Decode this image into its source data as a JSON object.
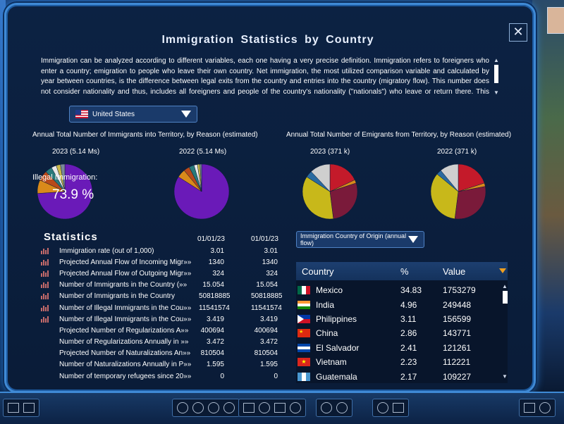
{
  "window": {
    "title": "Immigration  Statistics by Country",
    "intro": "Immigration can be analyzed according to different variables, each one having a very precise definition. Immigration refers to foreigners who enter a country; emigration to people who leave their own country. Net immigration, the most utilized comparison variable and calculated by year between countries, is the difference between legal exits from the country and entries into the country (migratory flow). This number does not consider nationality and thus, includes all foreigners and people of the country's nationality (\"nationals\") who leave or return there. This number is"
  },
  "country_select": {
    "value": "United States"
  },
  "immigrants": {
    "title": "Annual Total Number of Immigrants into Territory, by Reason (estimated)",
    "pie1_label": "2023 (5.14 Ms)",
    "pie2_label": "2022 (5.14 Ms)",
    "illegal_label": "Illegal Immigration:",
    "illegal_value": "73.9 %"
  },
  "emigrants": {
    "title": "Annual Total Number of Emigrants from Territory, by Reason (estimated)",
    "pie1_label": "2023 (371 k)",
    "pie2_label": "2022 (371 k)"
  },
  "chart_data": [
    {
      "type": "pie",
      "title": "2023 (5.14 Ms)",
      "values": [
        73.9,
        8,
        6,
        4,
        3,
        2.5,
        2.6
      ],
      "colors": [
        "#6a1ab8",
        "#d98a1a",
        "#b84a1a",
        "#2a7a7a",
        "#e8e8e8",
        "#c8b84a",
        "#7a8a9a"
      ]
    },
    {
      "type": "pie",
      "title": "2022 (5.14 Ms)",
      "values": [
        84,
        5,
        3.5,
        3,
        2,
        1.5,
        1
      ],
      "colors": [
        "#6a1ab8",
        "#d98a1a",
        "#b84a1a",
        "#2a7a7a",
        "#e8e8e8",
        "#c8b84a",
        "#7a8a9a"
      ]
    },
    {
      "type": "pie",
      "title": "2023 (371 k)",
      "values": [
        18,
        2,
        28,
        36,
        4,
        12
      ],
      "colors": [
        "#c41a2a",
        "#d98a1a",
        "#7a1a3a",
        "#c8b81a",
        "#2a6aa0",
        "#cfcfcf"
      ]
    },
    {
      "type": "pie",
      "title": "2022 (371 k)",
      "values": [
        20,
        2,
        30,
        34,
        3,
        11
      ],
      "colors": [
        "#c41a2a",
        "#d98a1a",
        "#7a1a3a",
        "#c8b81a",
        "#2a6aa0",
        "#cfcfcf"
      ]
    }
  ],
  "statistics": {
    "title": "Statistics",
    "date1": "01/01/23",
    "date2": "01/01/23",
    "rows": [
      {
        "label": "Immigration rate (out of 1,000)",
        "v1": "3.01",
        "v2": "3.01",
        "icon": true
      },
      {
        "label": "Projected Annual Flow of Incoming Migr»»",
        "v1": "1340",
        "v2": "1340",
        "icon": true
      },
      {
        "label": "Projected Annual Flow of Outgoing Migr»»",
        "v1": "324",
        "v2": "324",
        "icon": true
      },
      {
        "label": "Number of Immigrants in the Country (»»",
        "v1": "15.054",
        "v2": "15.054",
        "icon": true
      },
      {
        "label": "Number of Immigrants in the Country",
        "v1": "50818885",
        "v2": "50818885",
        "icon": true
      },
      {
        "label": "Number of Illegal Immigrants in the Cou»»",
        "v1": "11541574",
        "v2": "11541574",
        "icon": true
      },
      {
        "label": "Number of Illegal Immigrants in the Cou»»",
        "v1": "3.419",
        "v2": "3.419",
        "icon": true
      },
      {
        "label": "Projected Number of Regularizations A»»",
        "v1": "400694",
        "v2": "400694",
        "icon": false
      },
      {
        "label": "Number of Regularizations Annually in »»",
        "v1": "3.472",
        "v2": "3.472",
        "icon": false
      },
      {
        "label": "Projected Number of Naturalizations An»»",
        "v1": "810504",
        "v2": "810504",
        "icon": false
      },
      {
        "label": "Number of Naturalizations Annually in P»»",
        "v1": "1.595",
        "v2": "1.595",
        "icon": false
      },
      {
        "label": "Number of temporary refugees since 20»»",
        "v1": "0",
        "v2": "0",
        "icon": false
      }
    ]
  },
  "origin_select": {
    "value": "Immigration Country of Origin (annual flow)"
  },
  "origin_table": {
    "headers": [
      "Country",
      "%",
      "Value"
    ],
    "rows": [
      {
        "country": "Mexico",
        "pct": "34.83",
        "value": "1753279",
        "flag": "mexico"
      },
      {
        "country": "India",
        "pct": "4.96",
        "value": "249448",
        "flag": "india"
      },
      {
        "country": "Philippines",
        "pct": "3.11",
        "value": "156599",
        "flag": "philippines"
      },
      {
        "country": "China",
        "pct": "2.86",
        "value": "143771",
        "flag": "china"
      },
      {
        "country": "El Salvador",
        "pct": "2.41",
        "value": "121261",
        "flag": "el-salvador"
      },
      {
        "country": "Vietnam",
        "pct": "2.23",
        "value": "112221",
        "flag": "vietnam"
      },
      {
        "country": "Guatemala",
        "pct": "2.17",
        "value": "109227",
        "flag": "guatemala"
      }
    ]
  }
}
